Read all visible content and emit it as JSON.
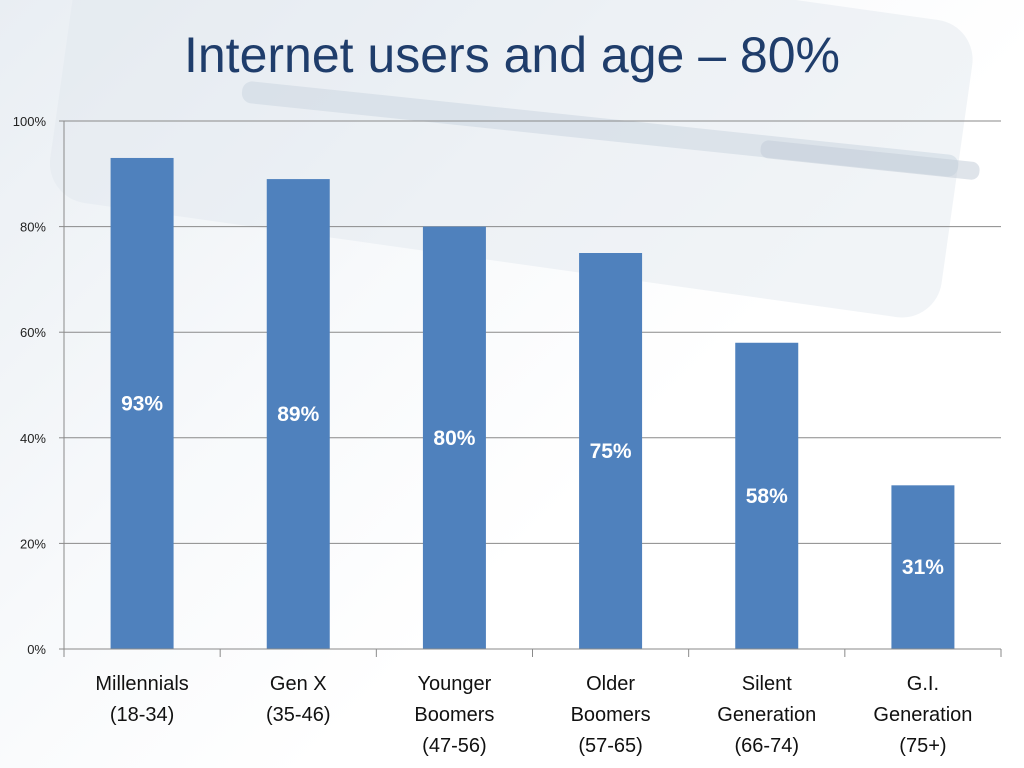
{
  "title": "Internet users and age – 80%",
  "colors": {
    "bar": "#4f81bd",
    "grid": "#8a8a8a",
    "title": "#1f3d6b"
  },
  "chart_data": {
    "type": "bar",
    "title": "Internet users and age – 80%",
    "categories": [
      [
        "Millennials",
        "(18-34)"
      ],
      [
        "Gen X",
        "(35-46)"
      ],
      [
        "Younger",
        "Boomers",
        "(47-56)"
      ],
      [
        "Older",
        "Boomers",
        "(57-65)"
      ],
      [
        "Silent",
        "Generation",
        "(66-74)"
      ],
      [
        "G.I.",
        "Generation",
        "(75+)"
      ]
    ],
    "values": [
      93,
      89,
      80,
      75,
      58,
      31
    ],
    "data_labels": [
      "93%",
      "89%",
      "80%",
      "75%",
      "58%",
      "31%"
    ],
    "ylim": [
      0,
      100
    ],
    "yticks": [
      0,
      20,
      40,
      60,
      80,
      100
    ],
    "ytick_labels": [
      "0%",
      "20%",
      "40%",
      "60%",
      "80%",
      "100%"
    ],
    "grid": true,
    "legend": "none"
  }
}
